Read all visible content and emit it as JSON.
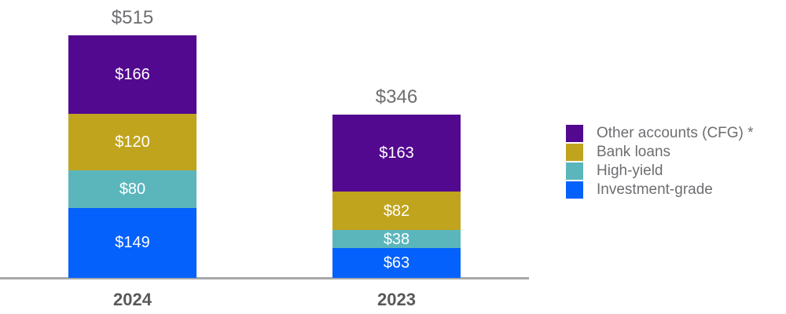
{
  "chart_data": {
    "type": "bar",
    "stacked": true,
    "orientation": "vertical",
    "categories": [
      "2024",
      "2023"
    ],
    "series": [
      {
        "name": "Investment-grade",
        "color": "#0561FB",
        "values": [
          149,
          63
        ],
        "labels": [
          "$149",
          "$63"
        ]
      },
      {
        "name": "High-yield",
        "color": "#5BB6BC",
        "values": [
          80,
          38
        ],
        "labels": [
          "$80",
          "$38"
        ]
      },
      {
        "name": "Bank loans",
        "color": "#C0A41E",
        "values": [
          120,
          82
        ],
        "labels": [
          "$120",
          "$82"
        ]
      },
      {
        "name": "Other accounts (CFG) *",
        "color": "#53098F",
        "values": [
          166,
          163
        ],
        "labels": [
          "$166",
          "$163"
        ]
      }
    ],
    "totals": {
      "values": [
        515,
        346
      ],
      "labels": [
        "$515",
        "$346"
      ]
    },
    "value_prefix": "$",
    "legend": {
      "position": "right",
      "items": [
        "Other accounts (CFG) *",
        "Bank loans",
        "High-yield",
        "Investment-grade"
      ]
    },
    "axis": {
      "baseline_visible": true,
      "gridlines": false,
      "y_ticks_visible": false
    },
    "style": {
      "background": "#FFFFFF",
      "value_label_color": "#FFFFFF",
      "total_label_color": "#6D6E71",
      "category_label_color": "#58595B",
      "legend_label_color": "#6D6E71",
      "axis_color": "#A7A8AA"
    }
  }
}
